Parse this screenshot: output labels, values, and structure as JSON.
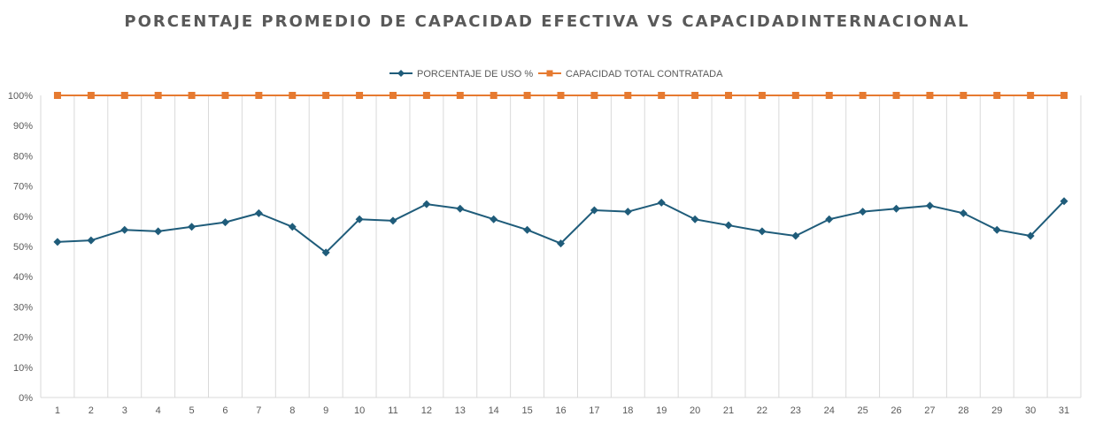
{
  "chart_data": {
    "type": "line",
    "title": "PORCENTAJE PROMEDIO DE CAPACIDAD EFECTIVA VS CAPACIDADINTERNACIONAL",
    "xlabel": "",
    "ylabel": "",
    "categories": [
      "1",
      "2",
      "3",
      "4",
      "5",
      "6",
      "7",
      "8",
      "9",
      "10",
      "11",
      "12",
      "13",
      "14",
      "15",
      "16",
      "17",
      "18",
      "19",
      "20",
      "21",
      "22",
      "23",
      "24",
      "25",
      "26",
      "27",
      "28",
      "29",
      "30",
      "31"
    ],
    "y_ticks": [
      "0%",
      "10%",
      "20%",
      "30%",
      "40%",
      "50%",
      "60%",
      "70%",
      "80%",
      "90%",
      "100%"
    ],
    "ylim": [
      0,
      100
    ],
    "grid": "vertical",
    "legend_position": "top",
    "series": [
      {
        "name": "PORCENTAJE DE USO %",
        "color": "#1F5C7A",
        "marker": "diamond",
        "values": [
          51.5,
          52,
          55.5,
          55,
          56.5,
          58,
          61,
          56.5,
          48,
          59,
          58.5,
          64,
          62.5,
          59,
          55.5,
          51,
          62,
          61.5,
          64.5,
          59,
          57,
          55,
          53.5,
          59,
          61.5,
          62.5,
          63.5,
          61,
          55.5,
          53.5,
          65
        ]
      },
      {
        "name": "CAPACIDAD TOTAL CONTRATADA",
        "color": "#E67A30",
        "marker": "square",
        "values": [
          100,
          100,
          100,
          100,
          100,
          100,
          100,
          100,
          100,
          100,
          100,
          100,
          100,
          100,
          100,
          100,
          100,
          100,
          100,
          100,
          100,
          100,
          100,
          100,
          100,
          100,
          100,
          100,
          100,
          100,
          100
        ]
      }
    ]
  }
}
